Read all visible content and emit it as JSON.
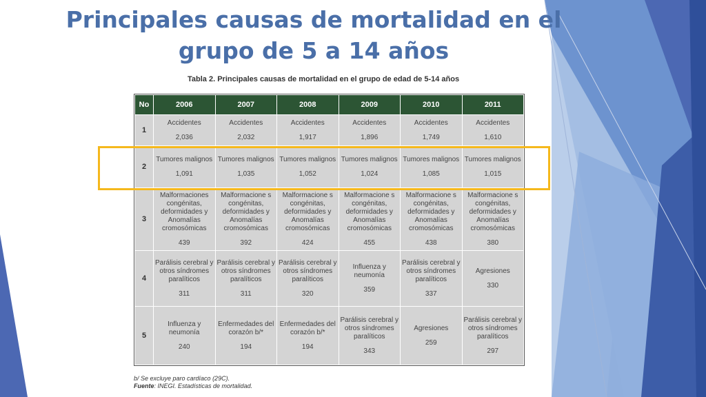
{
  "slide": {
    "title_line1": "Principales causas de mortalidad en el",
    "title_line2": "grupo de 5 a 14 años",
    "accent_color": "#4a6fa8",
    "highlight_color": "#f5b81c"
  },
  "table": {
    "caption": "Tabla 2. Principales causas de mortalidad en el grupo de edad de 5-14 años",
    "headers": [
      "No",
      "2006",
      "2007",
      "2008",
      "2009",
      "2010",
      "2011"
    ],
    "header_color": "#2c5534",
    "cell_color": "#d4d4d4",
    "rows": [
      {
        "no": "1",
        "cells": [
          {
            "cause": "Accidentes",
            "count": "2,036"
          },
          {
            "cause": "Accidentes",
            "count": "2,032"
          },
          {
            "cause": "Accidentes",
            "count": "1,917"
          },
          {
            "cause": "Accidentes",
            "count": "1,896"
          },
          {
            "cause": "Accidentes",
            "count": "1,749"
          },
          {
            "cause": "Accidentes",
            "count": "1,610"
          }
        ]
      },
      {
        "no": "2",
        "cells": [
          {
            "cause": "Tumores malignos",
            "count": "1,091"
          },
          {
            "cause": "Tumores malignos",
            "count": "1,035"
          },
          {
            "cause": "Tumores malignos",
            "count": "1,052"
          },
          {
            "cause": "Tumores malignos",
            "count": "1,024"
          },
          {
            "cause": "Tumores malignos",
            "count": "1,085"
          },
          {
            "cause": "Tumores malignos",
            "count": "1,015"
          }
        ]
      },
      {
        "no": "3",
        "cells": [
          {
            "cause": "Malformaciones congénitas, deformidades y Anomalías cromosómicas",
            "count": "439"
          },
          {
            "cause": "Malformacione s congénitas, deformidades y Anomalías cromosómicas",
            "count": "392"
          },
          {
            "cause": "Malformacione s congénitas, deformidades y Anomalías cromosómicas",
            "count": "424"
          },
          {
            "cause": "Malformacione s congénitas, deformidades y Anomalías cromosómicas",
            "count": "455"
          },
          {
            "cause": "Malformacione s congénitas, deformidades y Anomalías cromosómicas",
            "count": "438"
          },
          {
            "cause": "Malformacione s congénitas, deformidades y Anomalías cromosómicas",
            "count": "380"
          }
        ]
      },
      {
        "no": "4",
        "cells": [
          {
            "cause": "Parálisis cerebral y otros síndromes paralíticos",
            "count": "311"
          },
          {
            "cause": "Parálisis cerebral y otros síndromes paralíticos",
            "count": "311"
          },
          {
            "cause": "Parálisis cerebral y otros síndromes paralíticos",
            "count": "320"
          },
          {
            "cause": "Influenza y neumonía",
            "count": "359"
          },
          {
            "cause": "Parálisis cerebral y otros síndromes paralíticos",
            "count": "337"
          },
          {
            "cause": "Agresiones",
            "count": "330"
          }
        ]
      },
      {
        "no": "5",
        "cells": [
          {
            "cause": "Influenza y neumonía",
            "count": "240"
          },
          {
            "cause": "Enfermedades del corazón b/*",
            "count": "194"
          },
          {
            "cause": "Enfermedades del corazón b/*",
            "count": "194"
          },
          {
            "cause": "Parálisis cerebral y otros síndromes paralíticos",
            "count": "343"
          },
          {
            "cause": "Agresiones",
            "count": "259"
          },
          {
            "cause": "Parálisis cerebral y otros síndromes paralíticos",
            "count": "297"
          }
        ]
      }
    ],
    "footnote": "b/ Se excluye paro cardíaco (29C).",
    "source_label": "Fuente",
    "source_text": ": INEGI. Estadísticas de mortalidad."
  }
}
